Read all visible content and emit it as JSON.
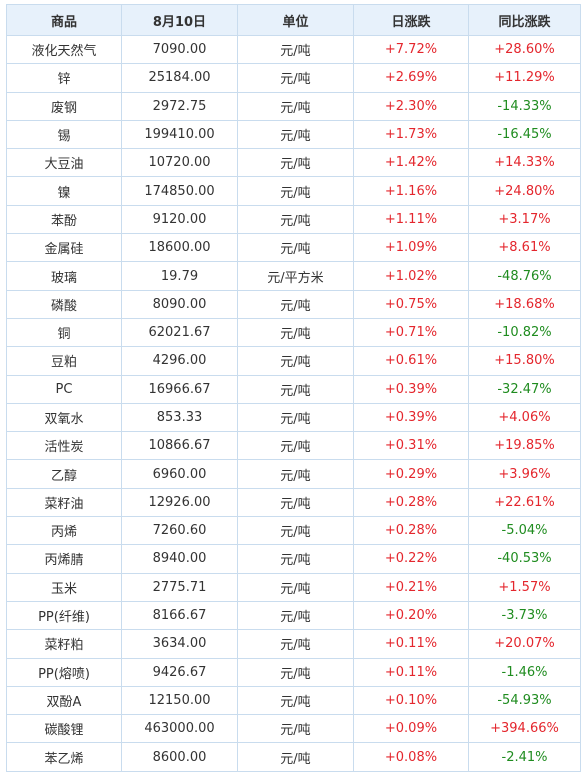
{
  "table": {
    "headers": [
      "商品",
      "8月10日",
      "单位",
      "日涨跌",
      "同比涨跌"
    ],
    "rows": [
      [
        "液化天然气",
        "7090.00",
        "元/吨",
        "+7.72%",
        "+28.60%"
      ],
      [
        "锌",
        "25184.00",
        "元/吨",
        "+2.69%",
        "+11.29%"
      ],
      [
        "废钢",
        "2972.75",
        "元/吨",
        "+2.30%",
        "-14.33%"
      ],
      [
        "锡",
        "199410.00",
        "元/吨",
        "+1.73%",
        "-16.45%"
      ],
      [
        "大豆油",
        "10720.00",
        "元/吨",
        "+1.42%",
        "+14.33%"
      ],
      [
        "镍",
        "174850.00",
        "元/吨",
        "+1.16%",
        "+24.80%"
      ],
      [
        "苯酚",
        "9120.00",
        "元/吨",
        "+1.11%",
        "+3.17%"
      ],
      [
        "金属硅",
        "18600.00",
        "元/吨",
        "+1.09%",
        "+8.61%"
      ],
      [
        "玻璃",
        "19.79",
        "元/平方米",
        "+1.02%",
        "-48.76%"
      ],
      [
        "磷酸",
        "8090.00",
        "元/吨",
        "+0.75%",
        "+18.68%"
      ],
      [
        "铜",
        "62021.67",
        "元/吨",
        "+0.71%",
        "-10.82%"
      ],
      [
        "豆粕",
        "4296.00",
        "元/吨",
        "+0.61%",
        "+15.80%"
      ],
      [
        "PC",
        "16966.67",
        "元/吨",
        "+0.39%",
        "-32.47%"
      ],
      [
        "双氧水",
        "853.33",
        "元/吨",
        "+0.39%",
        "+4.06%"
      ],
      [
        "活性炭",
        "10866.67",
        "元/吨",
        "+0.31%",
        "+19.85%"
      ],
      [
        "乙醇",
        "6960.00",
        "元/吨",
        "+0.29%",
        "+3.96%"
      ],
      [
        "菜籽油",
        "12926.00",
        "元/吨",
        "+0.28%",
        "+22.61%"
      ],
      [
        "丙烯",
        "7260.60",
        "元/吨",
        "+0.28%",
        "-5.04%"
      ],
      [
        "丙烯腈",
        "8940.00",
        "元/吨",
        "+0.22%",
        "-40.53%"
      ],
      [
        "玉米",
        "2775.71",
        "元/吨",
        "+0.21%",
        "+1.57%"
      ],
      [
        "PP(纤维)",
        "8166.67",
        "元/吨",
        "+0.20%",
        "-3.73%"
      ],
      [
        "菜籽粕",
        "3634.00",
        "元/吨",
        "+0.11%",
        "+20.07%"
      ],
      [
        "PP(熔喷)",
        "9426.67",
        "元/吨",
        "+0.11%",
        "-1.46%"
      ],
      [
        "双酚A",
        "12150.00",
        "元/吨",
        "+0.10%",
        "-54.93%"
      ],
      [
        "碳酸锂",
        "463000.00",
        "元/吨",
        "+0.09%",
        "+394.66%"
      ],
      [
        "苯乙烯",
        "8600.00",
        "元/吨",
        "+0.08%",
        "-2.41%"
      ]
    ]
  },
  "colors": {
    "up": "#e4262d",
    "down": "#1f8c1f",
    "header_bg": "#e7f1fb",
    "border": "#c9dcee"
  }
}
